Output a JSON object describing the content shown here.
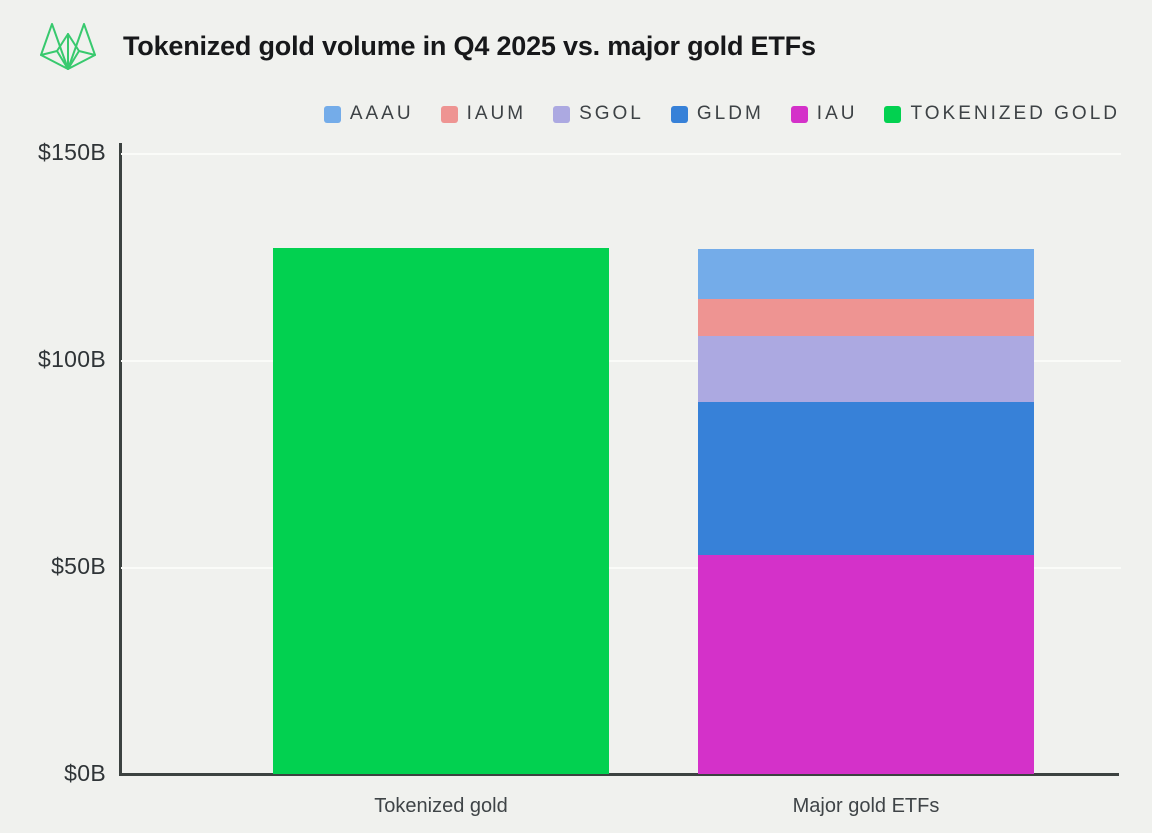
{
  "header": {
    "title": "Tokenized gold volume in Q4 2025 vs. major gold ETFs",
    "logo": "wireframe-fox-logo",
    "logo_color": "#38c96e"
  },
  "colors": {
    "background": "#f0f1ee",
    "axis": "#3c4240",
    "gridline": "#fafbf8"
  },
  "chart_data": {
    "type": "bar",
    "variant": "stacked",
    "title": "Tokenized gold volume in Q4 2025 vs. major gold ETFs",
    "unit": "billions USD",
    "categories": [
      "Tokenized gold",
      "Major gold ETFs"
    ],
    "series": [
      {
        "name": "AAAU",
        "color": "#74ace9",
        "values": [
          0,
          12
        ]
      },
      {
        "name": "IAUM",
        "color": "#ee9492",
        "values": [
          0,
          9
        ]
      },
      {
        "name": "SGOL",
        "color": "#aca9e1",
        "values": [
          0,
          16
        ]
      },
      {
        "name": "GLDM",
        "color": "#3781d8",
        "values": [
          0,
          37
        ]
      },
      {
        "name": "IAU",
        "color": "#d431c9",
        "values": [
          0,
          53
        ]
      },
      {
        "name": "TOKENIZED GOLD",
        "color": "#02d150",
        "values": [
          127,
          0
        ]
      }
    ],
    "totals": [
      127,
      127
    ],
    "ylim": [
      0,
      150
    ],
    "yticks": [
      {
        "value": 0,
        "label": "$0B"
      },
      {
        "value": 50,
        "label": "$50B"
      },
      {
        "value": 100,
        "label": "$100B"
      },
      {
        "value": 150,
        "label": "$150B"
      }
    ],
    "grid": true,
    "legend_position": "top-right"
  }
}
